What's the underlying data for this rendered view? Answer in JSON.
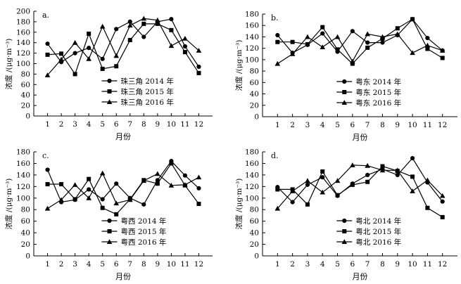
{
  "chart_data": [
    {
      "type": "line",
      "panel_label": "a.",
      "ylabel": "浓度 /(μg·m⁻³)",
      "xlabel": "月份",
      "ylim": [
        0,
        200
      ],
      "yticks": [
        0,
        20,
        40,
        60,
        80,
        100,
        120,
        140,
        160,
        180,
        200
      ],
      "x": [
        1,
        2,
        3,
        4,
        5,
        6,
        7,
        8,
        9,
        10,
        11,
        12
      ],
      "legend_position": "bottom-center",
      "series": [
        {
          "name": "珠三角 2014 年",
          "marker": "circle",
          "values": [
            138,
            103,
            120,
            130,
            109,
            166,
            180,
            151,
            180,
            185,
            133,
            94
          ]
        },
        {
          "name": "珠三角 2015 年",
          "marker": "square",
          "values": [
            117,
            119,
            80,
            157,
            90,
            95,
            145,
            176,
            176,
            164,
            122,
            82
          ]
        },
        {
          "name": "珠三角 2016 年",
          "marker": "triangle",
          "values": [
            78,
            108,
            140,
            109,
            171,
            115,
            173,
            186,
            183,
            134,
            148,
            125
          ]
        }
      ]
    },
    {
      "type": "line",
      "panel_label": "b.",
      "ylabel": "浓度 /(μg·m⁻³)",
      "xlabel": "月份",
      "ylim": [
        0,
        180
      ],
      "yticks": [
        0,
        20,
        40,
        60,
        80,
        100,
        120,
        140,
        160,
        180
      ],
      "x": [
        1,
        2,
        3,
        4,
        5,
        6,
        7,
        8,
        9,
        10,
        11,
        12
      ],
      "legend_position": "bottom-center",
      "series": [
        {
          "name": "粤东 2014 年",
          "marker": "circle",
          "values": [
            143,
            112,
            126,
            146,
            114,
            150,
            130,
            130,
            143,
            171,
            138,
            116
          ]
        },
        {
          "name": "粤东 2015 年",
          "marker": "square",
          "values": [
            131,
            131,
            127,
            157,
            118,
            93,
            121,
            137,
            155,
            171,
            119,
            103
          ]
        },
        {
          "name": "粤东 2016 年",
          "marker": "triangle",
          "values": [
            93,
            110,
            140,
            122,
            140,
            97,
            145,
            140,
            145,
            112,
            125,
            116
          ]
        }
      ]
    },
    {
      "type": "line",
      "panel_label": "c.",
      "ylabel": "浓度 /(μg·m⁻³)",
      "xlabel": "月份",
      "ylim": [
        0,
        180
      ],
      "yticks": [
        0,
        20,
        40,
        60,
        80,
        100,
        120,
        140,
        160,
        180
      ],
      "x": [
        1,
        2,
        3,
        4,
        5,
        6,
        7,
        8,
        9,
        10,
        11,
        12
      ],
      "legend_position": "bottom-center",
      "series": [
        {
          "name": "粤西 2014 年",
          "marker": "circle",
          "values": [
            149,
            93,
            97,
            115,
            98,
            125,
            100,
            89,
            131,
            164,
            139,
            117
          ]
        },
        {
          "name": "粤西 2015 年",
          "marker": "square",
          "values": [
            124,
            124,
            98,
            133,
            83,
            72,
            98,
            131,
            125,
            160,
            122,
            90
          ]
        },
        {
          "name": "粤西 2016 年",
          "marker": "triangle",
          "values": [
            82,
            97,
            123,
            100,
            143,
            91,
            97,
            130,
            142,
            122,
            123,
            136
          ]
        }
      ]
    },
    {
      "type": "line",
      "panel_label": "d.",
      "ylabel": "浓度 /(μg·m⁻³)",
      "xlabel": "月份",
      "ylim": [
        0,
        180
      ],
      "yticks": [
        0,
        20,
        40,
        60,
        80,
        100,
        120,
        140,
        160,
        180
      ],
      "x": [
        1,
        2,
        3,
        4,
        5,
        6,
        7,
        8,
        9,
        10,
        11,
        12
      ],
      "legend_position": "bottom-center",
      "series": [
        {
          "name": "粤北 2014 年",
          "marker": "circle",
          "values": [
            119,
            93,
            123,
            136,
            104,
            125,
            140,
            150,
            140,
            169,
            127,
            94
          ]
        },
        {
          "name": "粤北 2015 年",
          "marker": "square",
          "values": [
            115,
            115,
            89,
            146,
            105,
            123,
            128,
            155,
            147,
            137,
            83,
            67
          ]
        },
        {
          "name": "粤北 2016 年",
          "marker": "triangle",
          "values": [
            82,
            112,
            130,
            110,
            130,
            157,
            156,
            148,
            148,
            112,
            131,
            104
          ]
        }
      ]
    }
  ]
}
